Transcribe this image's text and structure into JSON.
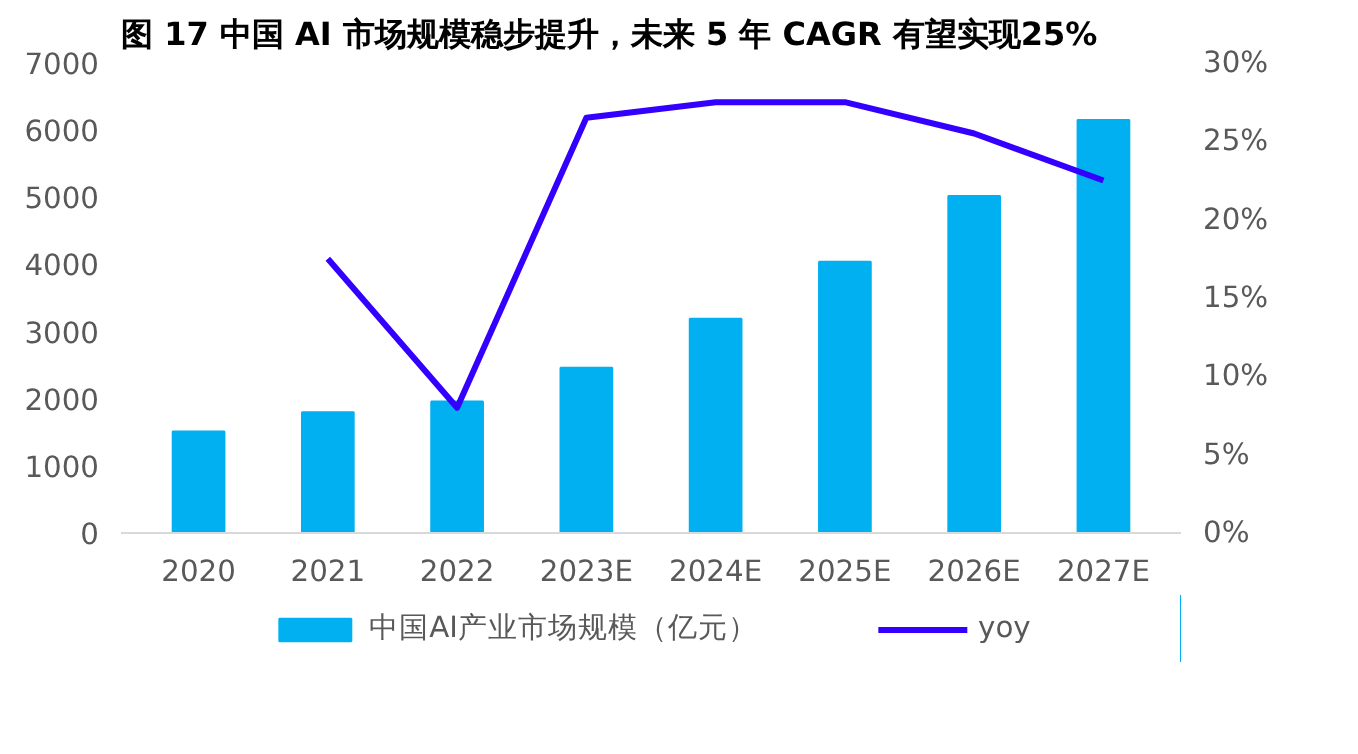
{
  "chart_data": {
    "type": "bar",
    "title": "图 17  中国 AI 市场规模稳步提升，未来 5 年 CAGR 有望实现25%",
    "categories": [
      "2020",
      "2021",
      "2022",
      "2023E",
      "2024E",
      "2025E",
      "2026E",
      "2027E"
    ],
    "series": [
      {
        "name": "中国AI产业市场规模（亿元）",
        "color": "#00b0f0",
        "values": [
          1510,
          1800,
          1960,
          2460,
          3190,
          4040,
          5020,
          6150
        ]
      },
      {
        "name": "yoy",
        "type": "line",
        "axis": "y2",
        "color": "#3300ff",
        "values": [
          null,
          17.5,
          8,
          26.5,
          27.5,
          27.5,
          25.5,
          22.5
        ]
      }
    ],
    "ylim": [
      0,
      7000
    ],
    "yticks": [
      0,
      1000,
      2000,
      3000,
      4000,
      5000,
      6000,
      7000
    ],
    "y2lim": [
      0,
      30
    ],
    "y2ticks": [
      {
        "value": 0,
        "label": "0%"
      },
      {
        "value": 5,
        "label": "5%"
      },
      {
        "value": 10,
        "label": "10%"
      },
      {
        "value": 15,
        "label": "15%"
      },
      {
        "value": 20,
        "label": "20%"
      },
      {
        "value": 25,
        "label": "25%"
      },
      {
        "value": 30,
        "label": "30%"
      }
    ],
    "grid": false,
    "legend": "bottom"
  }
}
